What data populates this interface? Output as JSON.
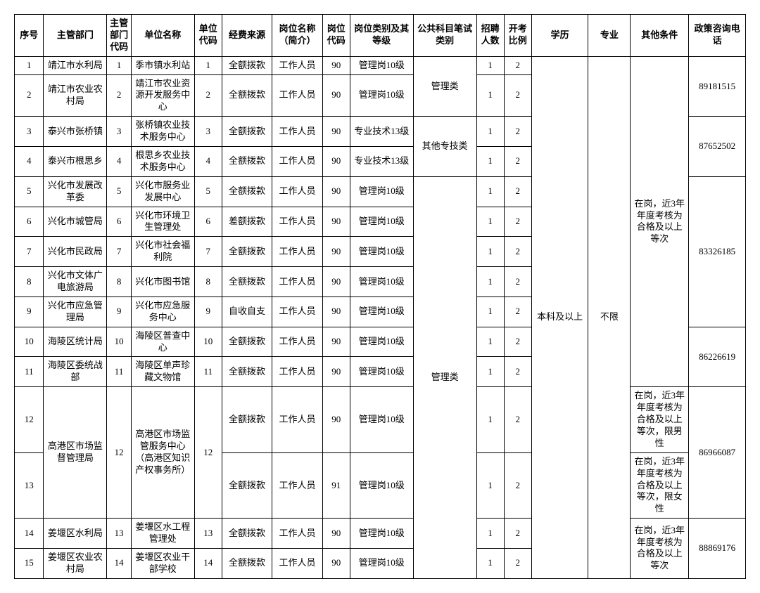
{
  "headers": {
    "seq": "序号",
    "dept": "主管部门",
    "dcode": "主管部门代码",
    "unit": "单位名称",
    "ucode": "单位代码",
    "fund": "经费来源",
    "job": "岗位名称（简介）",
    "jcode": "岗位代码",
    "jcat": "岗位类别及其等级",
    "exam": "公共科目笔试类别",
    "num": "招聘人数",
    "ratio": "开考比例",
    "edu": "学历",
    "major": "专业",
    "other": "其他条件",
    "phone": "政策咨询电话"
  },
  "funding": {
    "full": "全额拨款",
    "diff": "差额拨款",
    "self": "自收自支"
  },
  "jobTitle": "工作人员",
  "cat": {
    "mgmt10": "管理岗10级",
    "tech13": "专业技术13级"
  },
  "examCat": {
    "mgmt": "管理类",
    "tech": "其他专技类"
  },
  "eduAll": "本科及以上",
  "majorAll": "不限",
  "other": {
    "std": "在岗，近3年年度考核为合格及以上等次",
    "male": "在岗，近3年年度考核为合格及以上等次，限男性",
    "female": "在岗，近3年年度考核为合格及以上等次，限女性"
  },
  "rows": {
    "r1": {
      "seq": "1",
      "dept": "靖江市水利局",
      "dcode": "1",
      "unit": "季市镇水利站",
      "ucode": "1",
      "jcode": "90",
      "num": "1",
      "ratio": "2"
    },
    "r2": {
      "seq": "2",
      "dept": "靖江市农业农村局",
      "dcode": "2",
      "unit": "靖江市农业资源开发服务中心",
      "ucode": "2",
      "jcode": "90",
      "num": "1",
      "ratio": "2"
    },
    "r3": {
      "seq": "3",
      "dept": "泰兴市张桥镇",
      "dcode": "3",
      "unit": "张桥镇农业技术服务中心",
      "ucode": "3",
      "jcode": "90",
      "num": "1",
      "ratio": "2"
    },
    "r4": {
      "seq": "4",
      "dept": "泰兴市根思乡",
      "dcode": "4",
      "unit": "根思乡农业技术服务中心",
      "ucode": "4",
      "jcode": "90",
      "num": "1",
      "ratio": "2"
    },
    "r5": {
      "seq": "5",
      "dept": "兴化市发展改革委",
      "dcode": "5",
      "unit": "兴化市服务业发展中心",
      "ucode": "5",
      "jcode": "90",
      "num": "1",
      "ratio": "2"
    },
    "r6": {
      "seq": "6",
      "dept": "兴化市城管局",
      "dcode": "6",
      "unit": "兴化市环境卫生管理处",
      "ucode": "6",
      "jcode": "90",
      "num": "1",
      "ratio": "2"
    },
    "r7": {
      "seq": "7",
      "dept": "兴化市民政局",
      "dcode": "7",
      "unit": "兴化市社会福利院",
      "ucode": "7",
      "jcode": "90",
      "num": "1",
      "ratio": "2"
    },
    "r8": {
      "seq": "8",
      "dept": "兴化市文体广电旅游局",
      "dcode": "8",
      "unit": "兴化市图书馆",
      "ucode": "8",
      "jcode": "90",
      "num": "1",
      "ratio": "2"
    },
    "r9": {
      "seq": "9",
      "dept": "兴化市应急管理局",
      "dcode": "9",
      "unit": "兴化市应急服务中心",
      "ucode": "9",
      "jcode": "90",
      "num": "1",
      "ratio": "2"
    },
    "r10": {
      "seq": "10",
      "dept": "海陵区统计局",
      "dcode": "10",
      "unit": "海陵区普查中心",
      "ucode": "10",
      "jcode": "90",
      "num": "1",
      "ratio": "2"
    },
    "r11": {
      "seq": "11",
      "dept": "海陵区委统战部",
      "dcode": "11",
      "unit": "海陵区单声珍藏文物馆",
      "ucode": "11",
      "jcode": "90",
      "num": "1",
      "ratio": "2"
    },
    "r12": {
      "seq": "12",
      "dept": "高港区市场监督管理局",
      "dcode": "12",
      "unit": "高港区市场监管服务中心（高港区知识产权事务所）",
      "ucode": "12",
      "jcode": "90",
      "num": "1",
      "ratio": "2"
    },
    "r13": {
      "seq": "13",
      "jcode": "91",
      "num": "1",
      "ratio": "2"
    },
    "r14": {
      "seq": "14",
      "dept": "姜堰区水利局",
      "dcode": "13",
      "unit": "姜堰区水工程管理处",
      "ucode": "13",
      "jcode": "90",
      "num": "1",
      "ratio": "2"
    },
    "r15": {
      "seq": "15",
      "dept": "姜堰区农业农村局",
      "dcode": "14",
      "unit": "姜堰区农业干部学校",
      "ucode": "14",
      "jcode": "90",
      "num": "1",
      "ratio": "2"
    }
  },
  "phones": {
    "p1": "89181515",
    "p2": "87652502",
    "p3": "83326185",
    "p4": "86226619",
    "p5": "86966087",
    "p6": "88869176"
  }
}
